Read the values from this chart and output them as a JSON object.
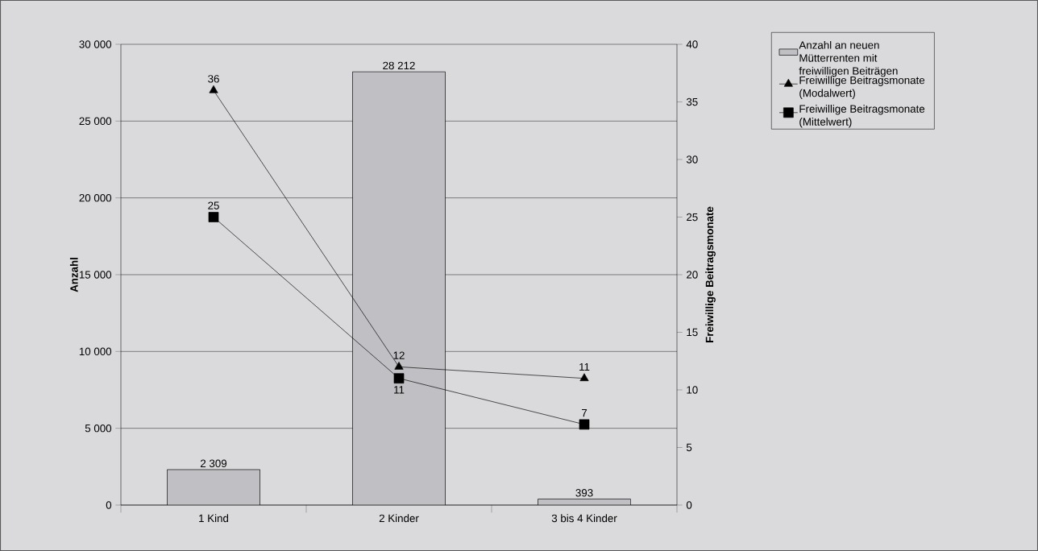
{
  "chart_data": {
    "type": "bar",
    "ylabel": "Anzahl",
    "y2label": "Freiwillige Beitragsmonate",
    "categories": [
      "1 Kind",
      "2 Kinder",
      "3 bis 4 Kinder"
    ],
    "series": [
      {
        "name": "Anzahl an neuen Mütterrenten mit freiwilligen Beiträgen",
        "color": "#c0c0c4",
        "values": [
          2309,
          28212,
          393
        ],
        "value_labels": [
          "2 309",
          "28 212",
          "393"
        ]
      },
      {
        "name": "Freiwillige Beitragsmonate (Modalwert)",
        "type": "line",
        "axis": "y2",
        "color": "#000000",
        "marker": "triangle",
        "values": [
          36,
          12,
          11
        ]
      },
      {
        "name": "Freiwillige Beitragsmonate (Mittelwert)",
        "type": "line",
        "axis": "y2",
        "color": "#000000",
        "marker": "square",
        "values": [
          25,
          11,
          7
        ]
      }
    ],
    "ylim": [
      0,
      30000
    ],
    "yticks": [
      {
        "value": 0,
        "label": "0"
      },
      {
        "value": 5000,
        "label": "5 000"
      },
      {
        "value": 10000,
        "label": "10 000"
      },
      {
        "value": 15000,
        "label": "15 000"
      },
      {
        "value": 20000,
        "label": "20 000"
      },
      {
        "value": 25000,
        "label": "25 000"
      },
      {
        "value": 30000,
        "label": "30 000"
      }
    ],
    "y2lim": [
      0,
      40
    ],
    "y2ticks": [
      0,
      5,
      10,
      15,
      20,
      25,
      30,
      35,
      40
    ],
    "grid": "y",
    "legend": "top right",
    "data_labels": true
  }
}
